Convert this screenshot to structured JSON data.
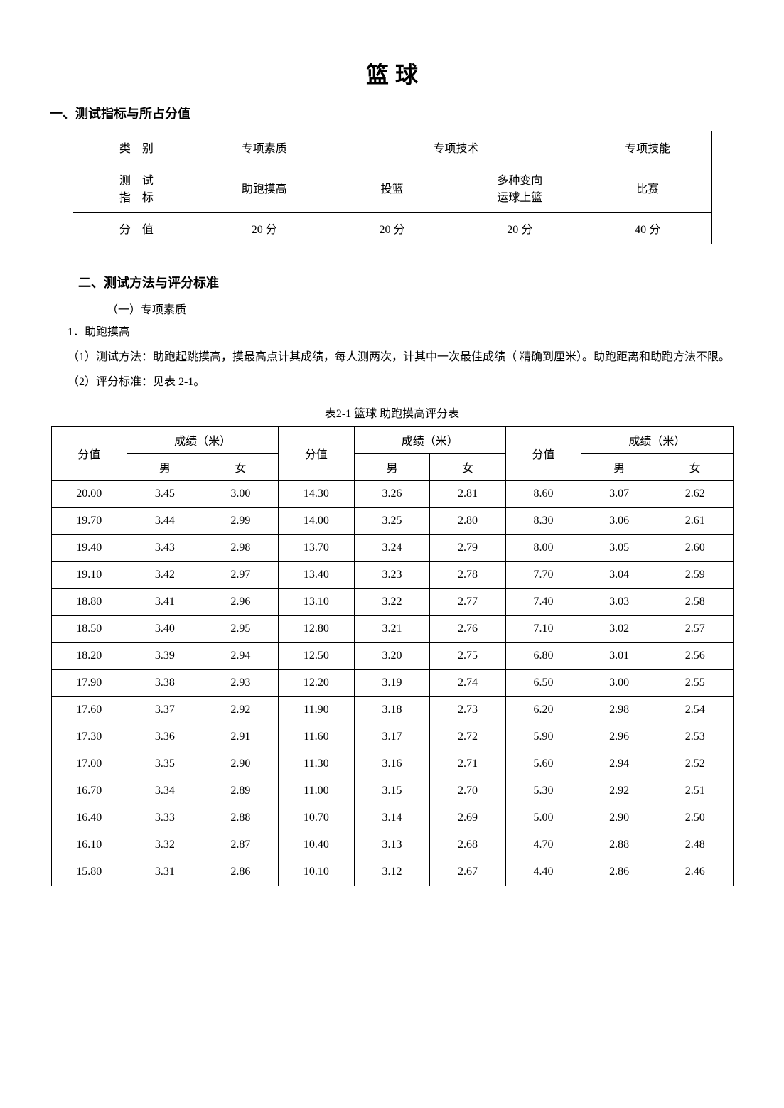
{
  "title": "篮 球",
  "section1": {
    "heading": "一、测试指标与所占分值",
    "table": {
      "row1": [
        "类　别",
        "专项素质",
        "专项技术",
        "专项技能"
      ],
      "row2": [
        "测　试\n指　标",
        "助跑摸高",
        "投篮",
        "多种变向\n运球上篮",
        "比赛"
      ],
      "row3": [
        "分　值",
        "20 分",
        "20 分",
        "20 分",
        "40 分"
      ]
    }
  },
  "section2": {
    "heading": "二、测试方法与评分标准",
    "subsection_label": "（一）专项素质",
    "item1_label": "1．助跑摸高",
    "method_text": "（1）测试方法：助跑起跳摸高，摸最高点计其成绩，每人测两次，计其中一次最佳成绩（ 精确到厘米）。助跑距离和助跑方法不限。",
    "standard_text": "（2）评分标准：见表 2-1。",
    "table_caption": "表2-1 篮球 助跑摸高评分表",
    "headers": {
      "score": "分值",
      "result": "成绩（米）",
      "male": "男",
      "female": "女"
    },
    "rows": [
      [
        "20.00",
        "3.45",
        "3.00",
        "14.30",
        "3.26",
        "2.81",
        "8.60",
        "3.07",
        "2.62"
      ],
      [
        "19.70",
        "3.44",
        "2.99",
        "14.00",
        "3.25",
        "2.80",
        "8.30",
        "3.06",
        "2.61"
      ],
      [
        "19.40",
        "3.43",
        "2.98",
        "13.70",
        "3.24",
        "2.79",
        "8.00",
        "3.05",
        "2.60"
      ],
      [
        "19.10",
        "3.42",
        "2.97",
        "13.40",
        "3.23",
        "2.78",
        "7.70",
        "3.04",
        "2.59"
      ],
      [
        "18.80",
        "3.41",
        "2.96",
        "13.10",
        "3.22",
        "2.77",
        "7.40",
        "3.03",
        "2.58"
      ],
      [
        "18.50",
        "3.40",
        "2.95",
        "12.80",
        "3.21",
        "2.76",
        "7.10",
        "3.02",
        "2.57"
      ],
      [
        "18.20",
        "3.39",
        "2.94",
        "12.50",
        "3.20",
        "2.75",
        "6.80",
        "3.01",
        "2.56"
      ],
      [
        "17.90",
        "3.38",
        "2.93",
        "12.20",
        "3.19",
        "2.74",
        "6.50",
        "3.00",
        "2.55"
      ],
      [
        "17.60",
        "3.37",
        "2.92",
        "11.90",
        "3.18",
        "2.73",
        "6.20",
        "2.98",
        "2.54"
      ],
      [
        "17.30",
        "3.36",
        "2.91",
        "11.60",
        "3.17",
        "2.72",
        "5.90",
        "2.96",
        "2.53"
      ],
      [
        "17.00",
        "3.35",
        "2.90",
        "11.30",
        "3.16",
        "2.71",
        "5.60",
        "2.94",
        "2.52"
      ],
      [
        "16.70",
        "3.34",
        "2.89",
        "11.00",
        "3.15",
        "2.70",
        "5.30",
        "2.92",
        "2.51"
      ],
      [
        "16.40",
        "3.33",
        "2.88",
        "10.70",
        "3.14",
        "2.69",
        "5.00",
        "2.90",
        "2.50"
      ],
      [
        "16.10",
        "3.32",
        "2.87",
        "10.40",
        "3.13",
        "2.68",
        "4.70",
        "2.88",
        "2.48"
      ],
      [
        "15.80",
        "3.31",
        "2.86",
        "10.10",
        "3.12",
        "2.67",
        "4.40",
        "2.86",
        "2.46"
      ]
    ]
  },
  "styling": {
    "background_color": "#ffffff",
    "text_color": "#000000",
    "border_color": "#000000",
    "title_fontsize": 32,
    "heading_fontsize": 18,
    "body_fontsize": 16
  }
}
